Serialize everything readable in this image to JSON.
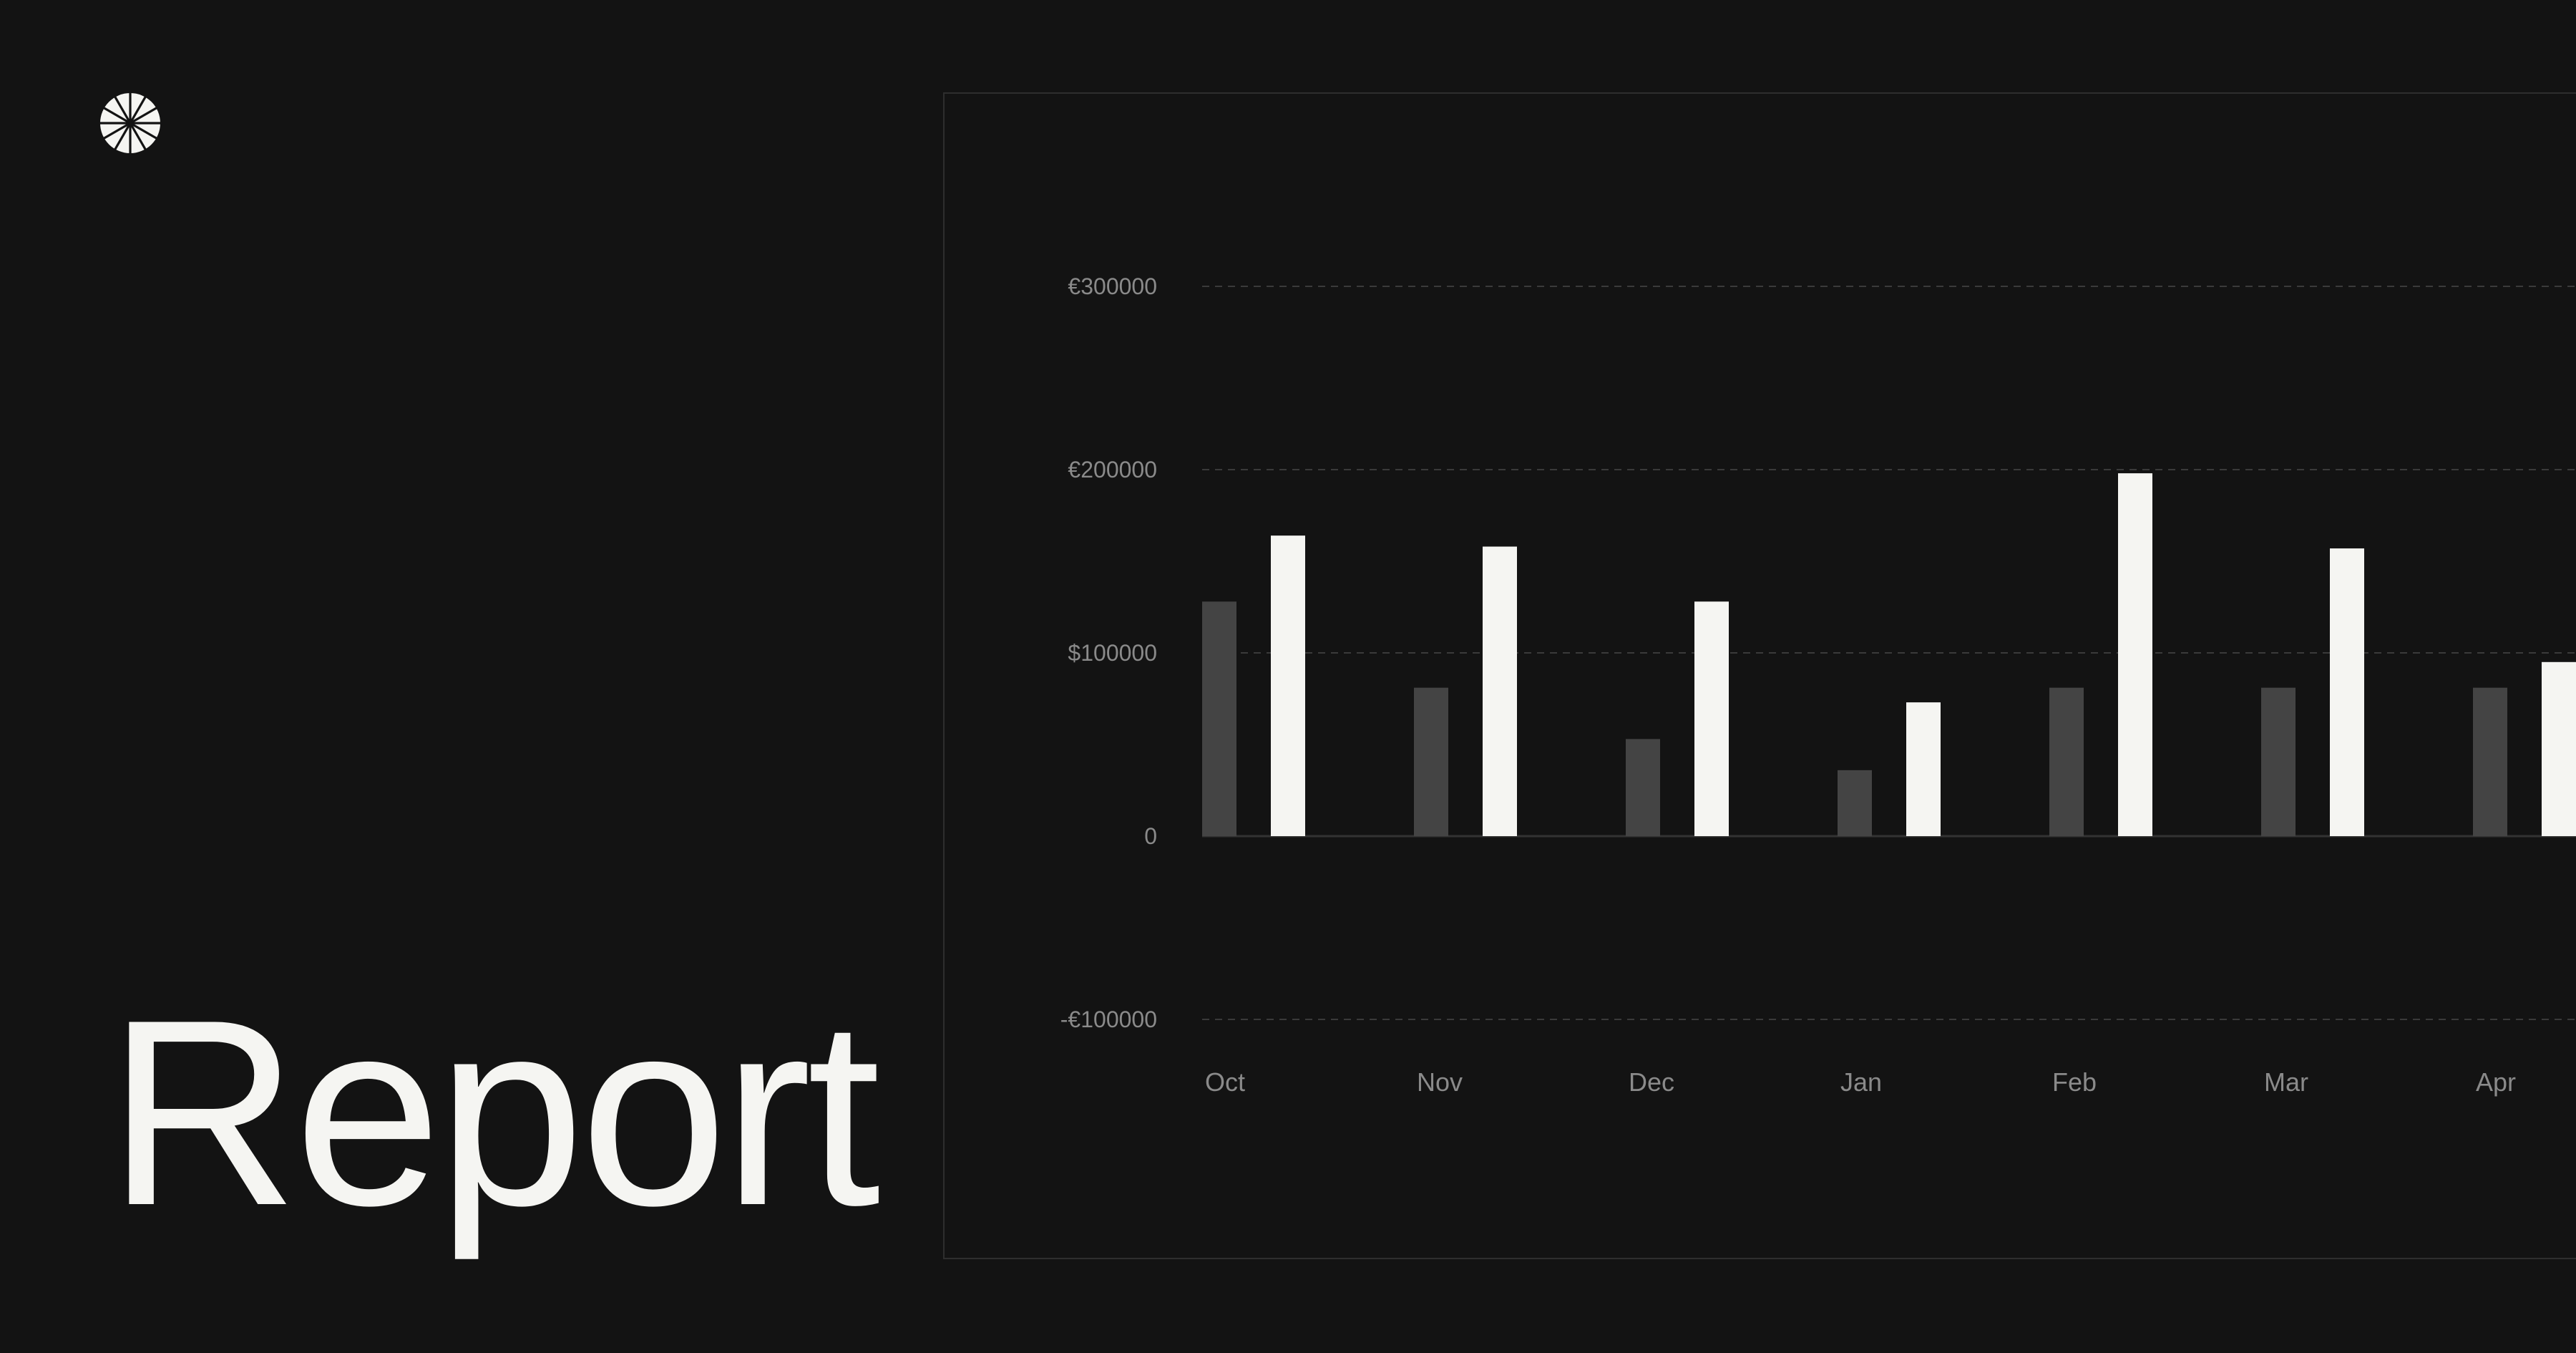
{
  "page": {
    "title": "Report"
  },
  "logo": {
    "icon": "sunburst-logo-icon"
  },
  "chart_data": {
    "type": "bar",
    "categories": [
      "Oct",
      "Nov",
      "Dec",
      "Jan",
      "Feb",
      "Mar",
      "Apr"
    ],
    "series": [
      {
        "values": [
          128000,
          81000,
          53000,
          36000,
          81000,
          81000,
          81000
        ],
        "color": "#444444"
      },
      {
        "values": [
          164000,
          158000,
          128000,
          73000,
          198000,
          157000,
          95000
        ],
        "color": "#f5f5f2"
      }
    ],
    "ylim": [
      -100000,
      300000
    ],
    "yticks": [
      {
        "value": 300000,
        "label": "€300000"
      },
      {
        "value": 200000,
        "label": "€200000"
      },
      {
        "value": 100000,
        "label": "$100000"
      },
      {
        "value": 0,
        "label": "0"
      },
      {
        "value": -100000,
        "label": "-€100000"
      }
    ],
    "grid": true,
    "title": "",
    "xlabel": "",
    "ylabel": ""
  },
  "colors": {
    "background": "#131313",
    "panel_border": "#2e2e2e",
    "grid": "#3a3a3a",
    "tick_label": "#8a8a8a",
    "text": "#f5f5f2"
  }
}
